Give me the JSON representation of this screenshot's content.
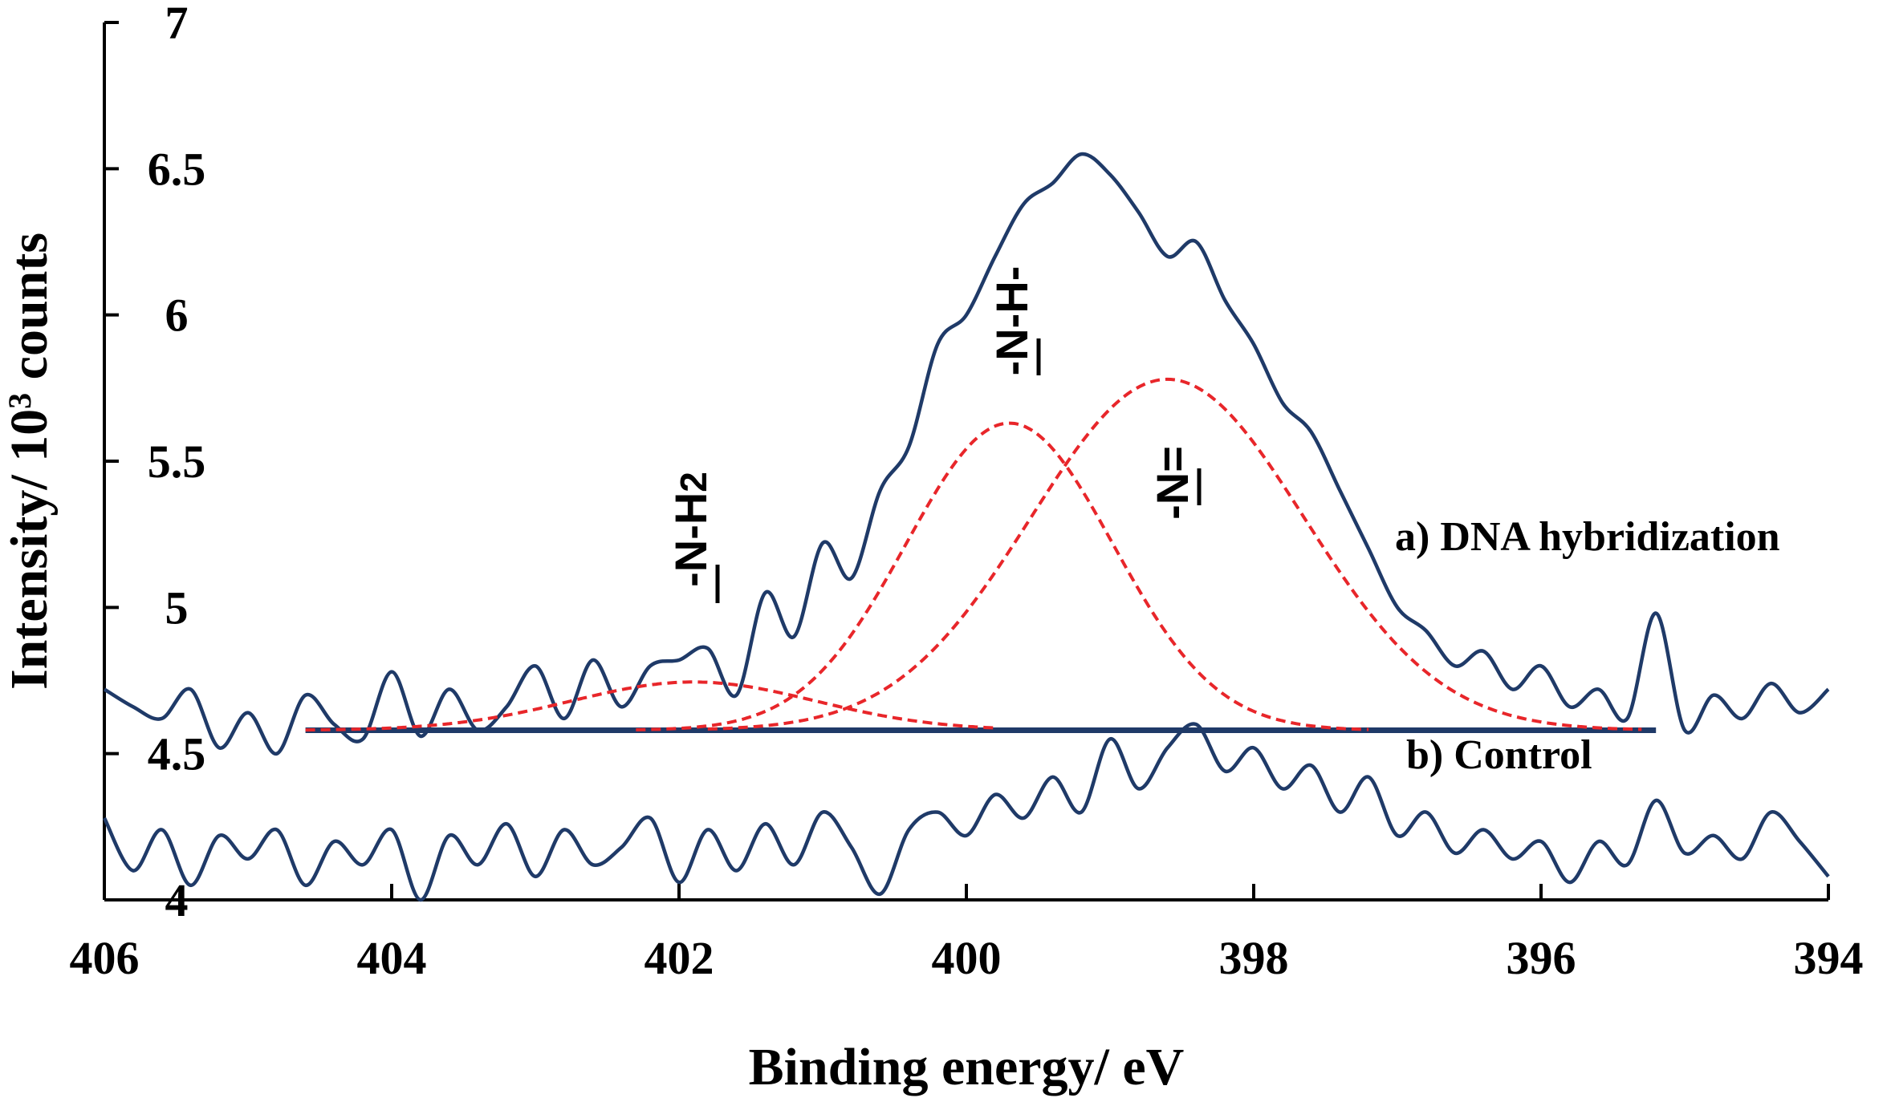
{
  "chart_data": {
    "type": "line",
    "title": "",
    "xlabel": "Binding energy/ eV",
    "ylabel_main": "Intensity/ 10",
    "ylabel_sup": "3",
    "ylabel_end": " counts",
    "xlim": [
      406,
      394
    ],
    "ylim": [
      4,
      7
    ],
    "x_ticks": [
      406,
      404,
      402,
      400,
      398,
      396,
      394
    ],
    "y_ticks": [
      4,
      4.5,
      5,
      5.5,
      6,
      6.5,
      7
    ],
    "y_tick_labels": [
      "4",
      "4.5",
      "5",
      "5.5",
      "6",
      "6.5",
      "7"
    ],
    "baseline": {
      "value": 4.58,
      "from": 404.6,
      "to": 395.2
    },
    "series": [
      {
        "name": "a) DNA hybridization",
        "color": "#1f3a68",
        "style": "solid",
        "x": [
          406.0,
          405.8,
          405.6,
          405.4,
          405.2,
          405.0,
          404.8,
          404.6,
          404.4,
          404.2,
          404.0,
          403.8,
          403.6,
          403.4,
          403.2,
          403.0,
          402.8,
          402.6,
          402.4,
          402.2,
          402.0,
          401.8,
          401.6,
          401.4,
          401.2,
          401.0,
          400.8,
          400.6,
          400.4,
          400.2,
          400.0,
          399.8,
          399.6,
          399.4,
          399.2,
          399.0,
          398.8,
          398.6,
          398.4,
          398.2,
          398.0,
          397.8,
          397.6,
          397.4,
          397.2,
          397.0,
          396.8,
          396.6,
          396.4,
          396.2,
          396.0,
          395.8,
          395.6,
          395.4,
          395.2,
          395.0,
          394.8,
          394.6,
          394.4,
          394.2,
          394.0
        ],
        "values": [
          4.72,
          4.66,
          4.62,
          4.72,
          4.52,
          4.64,
          4.5,
          4.7,
          4.6,
          4.55,
          4.78,
          4.56,
          4.72,
          4.58,
          4.66,
          4.8,
          4.62,
          4.82,
          4.66,
          4.8,
          4.82,
          4.86,
          4.7,
          5.05,
          4.9,
          5.22,
          5.1,
          5.4,
          5.55,
          5.9,
          6.0,
          6.2,
          6.38,
          6.45,
          6.55,
          6.48,
          6.35,
          6.2,
          6.25,
          6.05,
          5.9,
          5.7,
          5.6,
          5.4,
          5.2,
          5.0,
          4.92,
          4.8,
          4.85,
          4.72,
          4.8,
          4.66,
          4.72,
          4.62,
          4.98,
          4.58,
          4.7,
          4.62,
          4.74,
          4.64,
          4.72
        ]
      },
      {
        "name": "b) Control",
        "color": "#1f3a68",
        "style": "solid",
        "x": [
          406.0,
          405.8,
          405.6,
          405.4,
          405.2,
          405.0,
          404.8,
          404.6,
          404.4,
          404.2,
          404.0,
          403.8,
          403.6,
          403.4,
          403.2,
          403.0,
          402.8,
          402.6,
          402.4,
          402.2,
          402.0,
          401.8,
          401.6,
          401.4,
          401.2,
          401.0,
          400.8,
          400.6,
          400.4,
          400.2,
          400.0,
          399.8,
          399.6,
          399.4,
          399.2,
          399.0,
          398.8,
          398.6,
          398.4,
          398.2,
          398.0,
          397.8,
          397.6,
          397.4,
          397.2,
          397.0,
          396.8,
          396.6,
          396.4,
          396.2,
          396.0,
          395.8,
          395.6,
          395.4,
          395.2,
          395.0,
          394.8,
          394.6,
          394.4,
          394.2,
          394.0
        ],
        "values": [
          4.28,
          4.1,
          4.24,
          4.05,
          4.22,
          4.14,
          4.24,
          4.05,
          4.2,
          4.12,
          4.24,
          4.0,
          4.22,
          4.12,
          4.26,
          4.08,
          4.24,
          4.12,
          4.18,
          4.28,
          4.06,
          4.24,
          4.1,
          4.26,
          4.12,
          4.3,
          4.18,
          4.02,
          4.24,
          4.3,
          4.22,
          4.36,
          4.28,
          4.42,
          4.3,
          4.55,
          4.38,
          4.52,
          4.6,
          4.44,
          4.52,
          4.38,
          4.46,
          4.3,
          4.42,
          4.22,
          4.3,
          4.16,
          4.24,
          4.14,
          4.2,
          4.06,
          4.2,
          4.12,
          4.34,
          4.16,
          4.22,
          4.14,
          4.3,
          4.2,
          4.08
        ]
      },
      {
        "name": "-N-H2 component",
        "color": "#e8262a",
        "style": "dashed",
        "gaussian": {
          "center": 401.9,
          "amplitude": 0.165,
          "sigma": 0.85,
          "from": 404.6,
          "to": 399.8
        }
      },
      {
        "name": "-N-H- component",
        "color": "#e8262a",
        "style": "dashed",
        "gaussian": {
          "center": 399.7,
          "amplitude": 1.05,
          "sigma": 0.72,
          "from": 402.3,
          "to": 397.2
        }
      },
      {
        "name": "-N= component",
        "color": "#e8262a",
        "style": "dashed",
        "gaussian": {
          "center": 398.6,
          "amplitude": 1.2,
          "sigma": 0.95,
          "from": 401.8,
          "to": 395.3
        }
      }
    ],
    "legend": {
      "series_a": "a) DNA hybridization",
      "series_b": "b) Control"
    },
    "peak_labels": {
      "nh2_main": "-N-H",
      "nh2_sub": "2",
      "nh": "-N-H-",
      "n_double": "-N="
    }
  }
}
